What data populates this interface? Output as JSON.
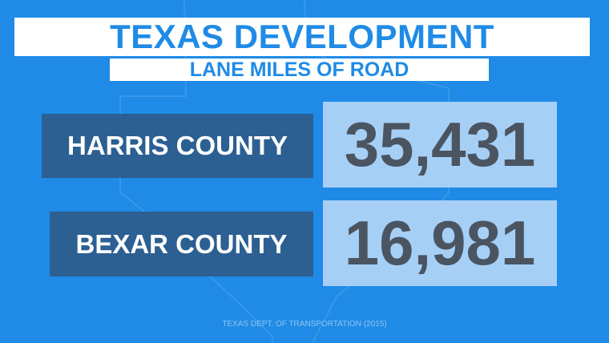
{
  "header": {
    "title": "TEXAS DEVELOPMENT",
    "subtitle": "LANE MILES OF ROAD"
  },
  "rows": [
    {
      "label": "HARRIS COUNTY",
      "value": "35,431"
    },
    {
      "label": "BEXAR COUNTY",
      "value": "16,981"
    }
  ],
  "source": "TEXAS DEPT. OF TRANSPORTATION (2015)"
}
